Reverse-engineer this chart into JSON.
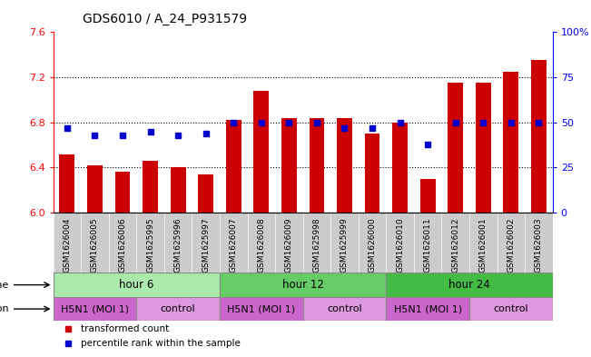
{
  "title": "GDS6010 / A_24_P931579",
  "samples": [
    "GSM1626004",
    "GSM1626005",
    "GSM1626006",
    "GSM1625995",
    "GSM1625996",
    "GSM1625997",
    "GSM1626007",
    "GSM1626008",
    "GSM1626009",
    "GSM1625998",
    "GSM1625999",
    "GSM1626000",
    "GSM1626010",
    "GSM1626011",
    "GSM1626012",
    "GSM1626001",
    "GSM1626002",
    "GSM1626003"
  ],
  "bar_values": [
    6.52,
    6.42,
    6.36,
    6.46,
    6.4,
    6.34,
    6.82,
    7.08,
    6.84,
    6.84,
    6.84,
    6.7,
    6.8,
    6.3,
    7.15,
    7.15,
    7.25,
    7.35
  ],
  "dot_percentiles": [
    47,
    43,
    43,
    45,
    43,
    44,
    50,
    50,
    50,
    50,
    47,
    47,
    50,
    38,
    50,
    50,
    50,
    50
  ],
  "bar_color": "#cc0000",
  "dot_color": "#0000cc",
  "ylim_left": [
    6.0,
    7.6
  ],
  "ylim_right": [
    0,
    100
  ],
  "yticks_left": [
    6.0,
    6.4,
    6.8,
    7.2,
    7.6
  ],
  "yticks_right": [
    0,
    25,
    50,
    75,
    100
  ],
  "ytick_labels_right": [
    "0",
    "25",
    "50",
    "75",
    "100%"
  ],
  "hlines": [
    6.4,
    6.8,
    7.2
  ],
  "time_groups": [
    {
      "label": "hour 6",
      "start": 0,
      "end": 6,
      "color": "#aaeaaa"
    },
    {
      "label": "hour 12",
      "start": 6,
      "end": 12,
      "color": "#66cc66"
    },
    {
      "label": "hour 24",
      "start": 12,
      "end": 18,
      "color": "#44bb44"
    }
  ],
  "inf_groups": [
    {
      "label": "H5N1 (MOI 1)",
      "start": 0,
      "end": 3,
      "color": "#cc66cc"
    },
    {
      "label": "control",
      "start": 3,
      "end": 6,
      "color": "#dd99dd"
    },
    {
      "label": "H5N1 (MOI 1)",
      "start": 6,
      "end": 9,
      "color": "#cc66cc"
    },
    {
      "label": "control",
      "start": 9,
      "end": 12,
      "color": "#dd99dd"
    },
    {
      "label": "H5N1 (MOI 1)",
      "start": 12,
      "end": 15,
      "color": "#cc66cc"
    },
    {
      "label": "control",
      "start": 15,
      "end": 18,
      "color": "#dd99dd"
    }
  ],
  "sample_bg_color": "#cccccc",
  "background_color": "#ffffff",
  "legend_bar": "transformed count",
  "legend_dot": "percentile rank within the sample",
  "bar_width": 0.55,
  "base_value": 6.0
}
